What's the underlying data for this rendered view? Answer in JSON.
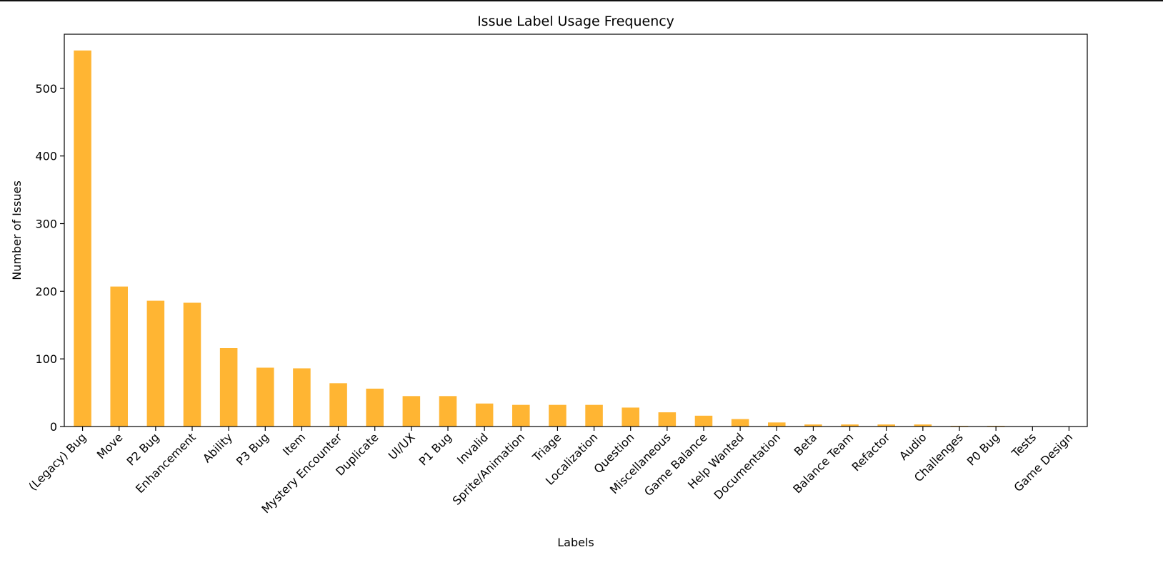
{
  "chart_data": {
    "type": "bar",
    "title": "Issue Label Usage Frequency",
    "xlabel": "Labels",
    "ylabel": "Number of Issues",
    "ylim": [
      0,
      580
    ],
    "yticks": [
      0,
      100,
      200,
      300,
      400,
      500
    ],
    "bar_color": "#ffb533",
    "grid": false,
    "categories": [
      "(Legacy) Bug",
      "Move",
      "P2 Bug",
      "Enhancement",
      "Ability",
      "P3 Bug",
      "Item",
      "Mystery Encounter",
      "Duplicate",
      "UI/UX",
      "P1 Bug",
      "Invalid",
      "Sprite/Animation",
      "Triage",
      "Localization",
      "Question",
      "Miscellaneous",
      "Game Balance",
      "Help Wanted",
      "Documentation",
      "Beta",
      "Balance Team",
      "Refactor",
      "Audio",
      "Challenges",
      "P0 Bug",
      "Tests",
      "Game Design"
    ],
    "values": [
      556,
      207,
      186,
      183,
      116,
      87,
      86,
      64,
      56,
      45,
      45,
      34,
      32,
      32,
      32,
      28,
      21,
      16,
      11,
      6,
      3,
      3,
      3,
      3,
      1,
      1,
      0,
      0
    ]
  }
}
